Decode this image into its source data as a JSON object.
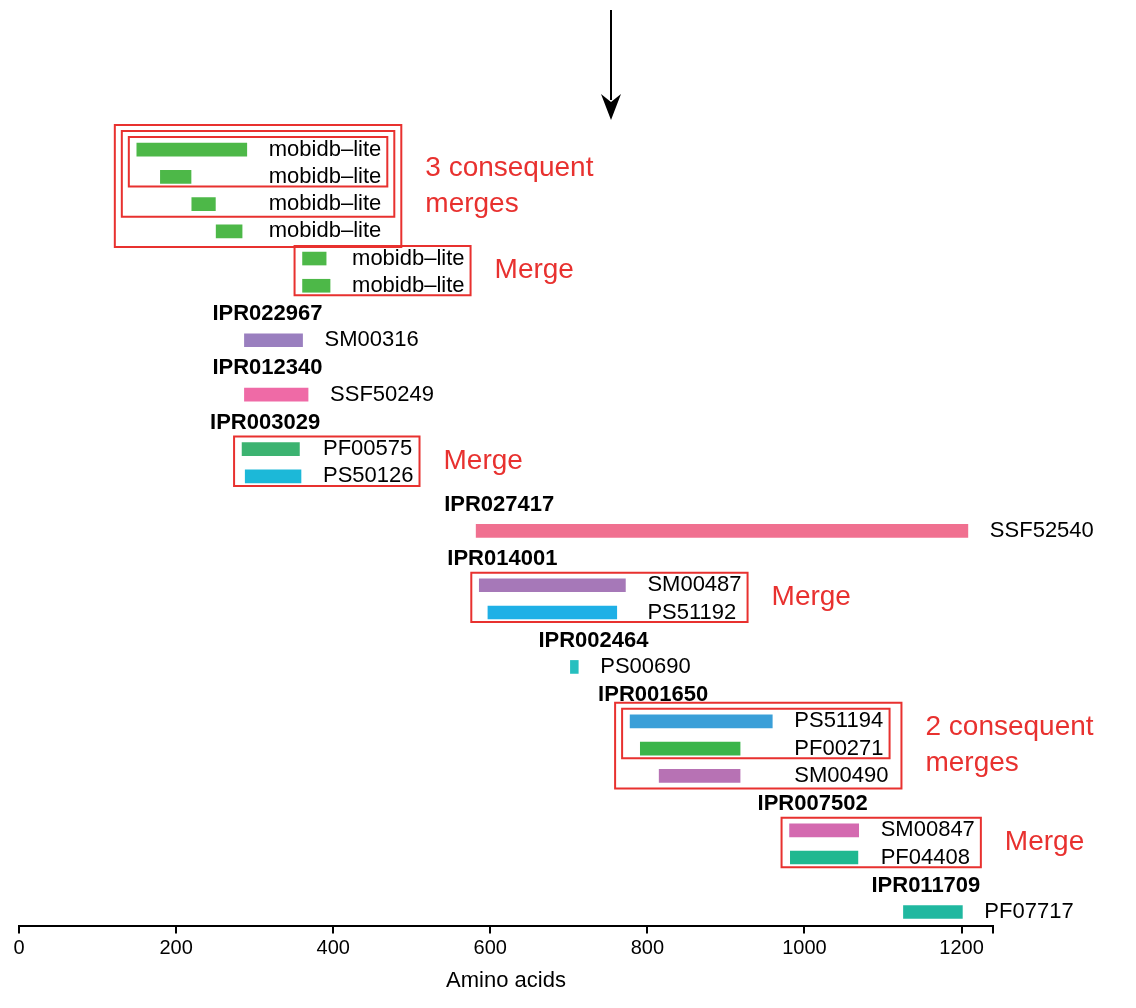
{
  "chart_data": {
    "type": "bar",
    "orientation": "horizontal",
    "xlabel": "Amino acids",
    "categories": [
      "mobidb‒lite",
      "mobidb‒lite",
      "mobidb‒lite",
      "mobidb‒lite",
      "mobidb‒lite",
      "mobidb‒lite",
      "IPR022967",
      "SM00316",
      "IPR012340",
      "SSF50249",
      "IPR003029",
      "PF00575",
      "PS50126",
      "IPR027417",
      "SSF52540",
      "IPR014001",
      "SM00487",
      "PS51192",
      "IPR002464",
      "PS00690",
      "IPR001650",
      "PS51194",
      "PF00271",
      "SM00490",
      "IPR007502",
      "SM00847",
      "PF04408",
      "IPR011709",
      "PF07717"
    ],
    "base": [
      150,
      180,
      220,
      251,
      361,
      361,
      null,
      287,
      null,
      287,
      null,
      284,
      288,
      null,
      582,
      null,
      586,
      597,
      null,
      702,
      null,
      778,
      791,
      815,
      null,
      981,
      982,
      null,
      1126
    ],
    "values": [
      140,
      39,
      30,
      33,
      30,
      35,
      null,
      74,
      null,
      81,
      null,
      73,
      71,
      null,
      626,
      null,
      186,
      164,
      null,
      10,
      null,
      181,
      127,
      103,
      null,
      88,
      86,
      null,
      75
    ],
    "colors": [
      "#4db848",
      "#4db848",
      "#4db848",
      "#4db848",
      "#4db848",
      "#4db848",
      null,
      "#9a7fbf",
      null,
      "#ef6aa6",
      null,
      "#3cb371",
      "#1cb8d8",
      null,
      "#f07090",
      null,
      "#a678b8",
      "#1fb0e6",
      null,
      "#26bfbf",
      null,
      "#3a9fd8",
      "#3ab54a",
      "#b772b4",
      null,
      "#d46ab0",
      "#20b890",
      null,
      "#20b8a0"
    ],
    "xlim": [
      0,
      1240
    ],
    "xticks": [
      0,
      200,
      400,
      600,
      800,
      1000,
      1200,
      {
        "value": 1240,
        "label": null
      }
    ],
    "tick_labels": "x",
    "annotations": [
      "3 consequent merges",
      "Merge",
      "Merge",
      "Merge",
      "2 consequent merges",
      "Merge"
    ]
  }
}
